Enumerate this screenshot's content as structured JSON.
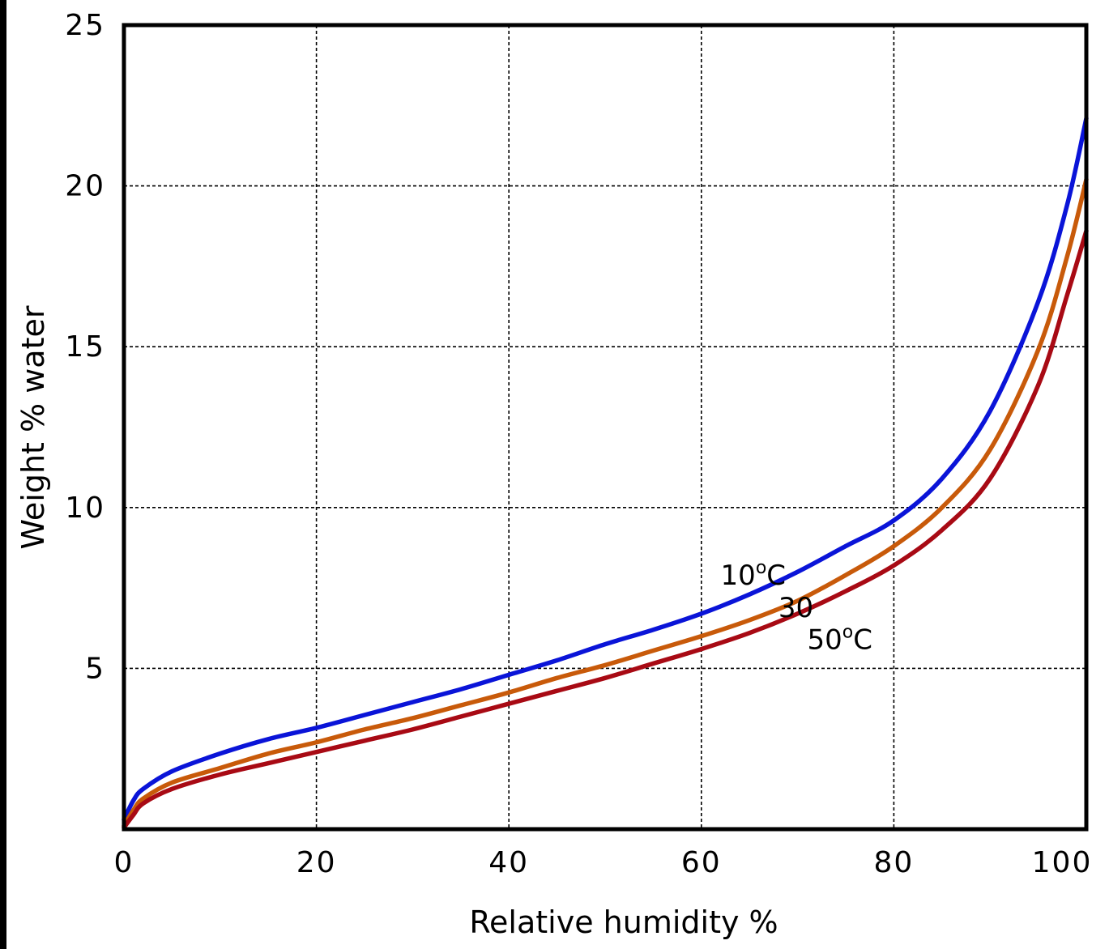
{
  "chart_data": {
    "type": "line",
    "xlabel": "Relative humidity %",
    "ylabel": "Weight % water",
    "xlim": [
      0,
      100
    ],
    "ylim": [
      0,
      25
    ],
    "x_ticks": [
      "0",
      "20",
      "40",
      "60",
      "80",
      "100"
    ],
    "y_ticks": [
      "5",
      "10",
      "15",
      "20",
      "25"
    ],
    "grid": true,
    "series": [
      {
        "name": "10°C",
        "color": "#0a14d8",
        "x": [
          0,
          1,
          2,
          5,
          10,
          15,
          20,
          25,
          30,
          35,
          40,
          45,
          50,
          55,
          60,
          65,
          70,
          75,
          80,
          85,
          90,
          95,
          98,
          100
        ],
        "y": [
          0.3,
          0.9,
          1.25,
          1.8,
          2.35,
          2.8,
          3.15,
          3.55,
          3.95,
          4.35,
          4.8,
          5.25,
          5.75,
          6.2,
          6.7,
          7.3,
          8.0,
          8.8,
          9.6,
          10.9,
          13.0,
          16.4,
          19.4,
          22.1
        ]
      },
      {
        "name": "30",
        "color": "#c85a0a",
        "x": [
          0,
          1,
          2,
          5,
          10,
          15,
          20,
          25,
          30,
          35,
          40,
          45,
          50,
          55,
          60,
          65,
          70,
          75,
          80,
          85,
          90,
          95,
          98,
          100
        ],
        "y": [
          0.1,
          0.6,
          0.95,
          1.45,
          1.9,
          2.35,
          2.7,
          3.1,
          3.45,
          3.85,
          4.25,
          4.7,
          5.1,
          5.55,
          6.0,
          6.5,
          7.1,
          7.9,
          8.8,
          10.0,
          11.8,
          14.9,
          17.8,
          20.2
        ]
      },
      {
        "name": "50°C",
        "color": "#a80a14",
        "x": [
          0,
          1,
          2,
          5,
          10,
          15,
          20,
          25,
          30,
          35,
          40,
          45,
          50,
          55,
          60,
          65,
          70,
          75,
          80,
          85,
          90,
          95,
          98,
          100
        ],
        "y": [
          0.05,
          0.45,
          0.8,
          1.25,
          1.7,
          2.05,
          2.4,
          2.75,
          3.1,
          3.5,
          3.9,
          4.3,
          4.7,
          5.15,
          5.6,
          6.1,
          6.7,
          7.4,
          8.2,
          9.3,
          10.9,
          13.8,
          16.6,
          18.6
        ]
      }
    ],
    "annotations": [
      {
        "text": "10",
        "sup": "o",
        "unit": "C",
        "x": 62,
        "y": 7.6
      },
      {
        "text": "30",
        "sup": "",
        "unit": "",
        "x": 68,
        "y": 6.6
      },
      {
        "text": "50",
        "sup": "o",
        "unit": "C",
        "x": 71,
        "y": 5.6
      }
    ]
  }
}
